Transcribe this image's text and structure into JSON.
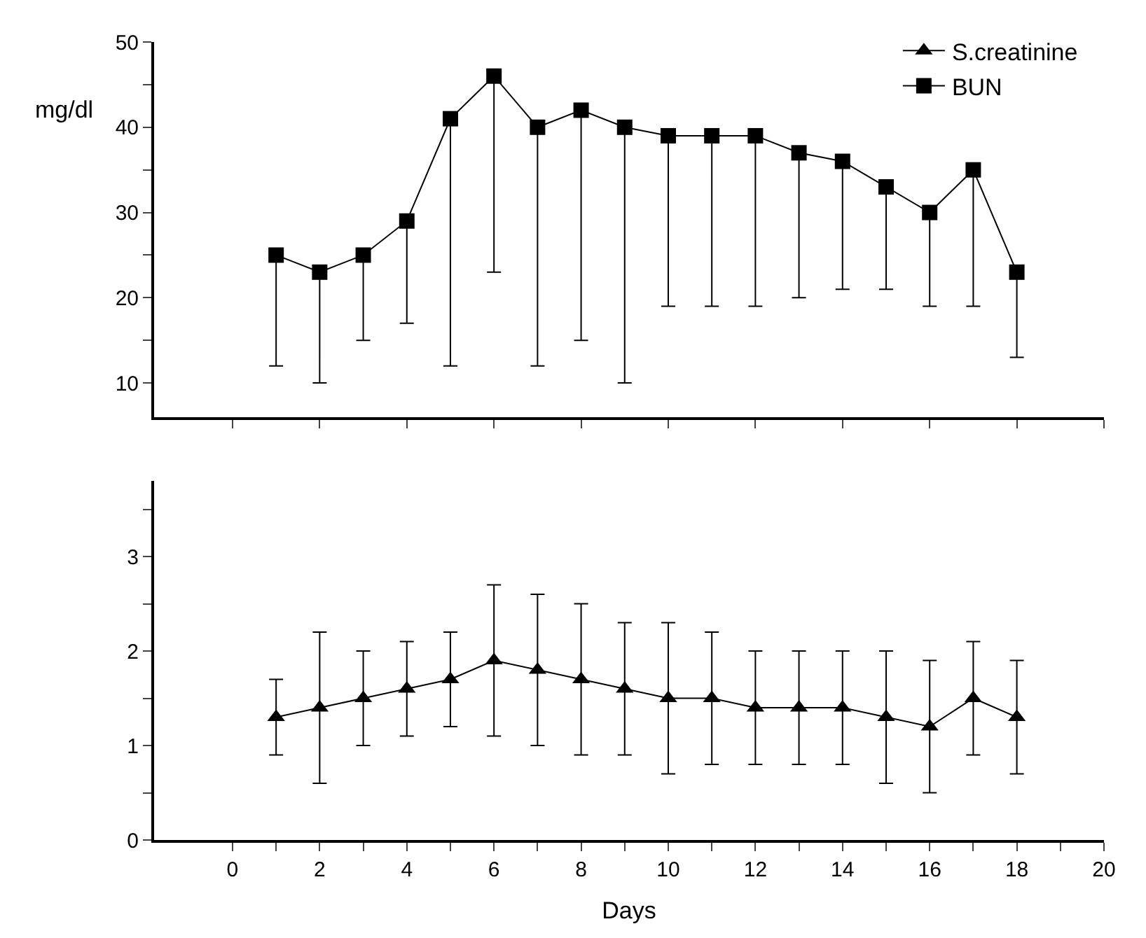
{
  "chart_data": [
    {
      "type": "line",
      "ylabel": "mg/dl",
      "x": [
        1,
        2,
        3,
        4,
        5,
        6,
        7,
        8,
        9,
        10,
        11,
        12,
        13,
        14,
        15,
        16,
        17,
        18
      ],
      "xlim": [
        -1.8,
        20
      ],
      "xticks": [
        0,
        2,
        4,
        6,
        8,
        10,
        12,
        14,
        16,
        18,
        20
      ],
      "ylim": [
        6,
        50
      ],
      "yticks": [
        10,
        {
          "value": 15,
          "label": null
        },
        20,
        {
          "value": 25,
          "label": null
        },
        30,
        {
          "value": 35,
          "label": null
        },
        40,
        {
          "value": 45,
          "label": null
        },
        50
      ],
      "tick_labels": "y",
      "legend": "top right",
      "line_style": "solid",
      "series": [
        {
          "name": "BUN",
          "color": "#000000",
          "marker": "square",
          "values": [
            25,
            23,
            25,
            29,
            41,
            46,
            40,
            42,
            40,
            39,
            39,
            39,
            37,
            36,
            33,
            30,
            35,
            23
          ],
          "errors": [
            [
              12,
              25
            ],
            [
              10,
              23
            ],
            [
              15,
              25
            ],
            [
              17,
              29
            ],
            [
              12,
              41
            ],
            [
              23,
              46
            ],
            [
              12,
              40
            ],
            [
              15,
              42
            ],
            [
              10,
              40
            ],
            [
              19,
              39
            ],
            [
              19,
              39
            ],
            [
              19,
              39
            ],
            [
              20,
              37
            ],
            [
              21,
              36
            ],
            [
              21,
              33
            ],
            [
              19,
              30
            ],
            [
              19,
              35
            ],
            [
              13,
              23
            ]
          ]
        }
      ]
    },
    {
      "type": "line",
      "xlabel": "Days",
      "x": [
        1,
        2,
        3,
        4,
        5,
        6,
        7,
        8,
        9,
        10,
        11,
        12,
        13,
        14,
        15,
        16,
        17,
        18
      ],
      "xlim": [
        -1.8,
        20
      ],
      "xticks": [
        0,
        {
          "value": 1,
          "label": null
        },
        2,
        {
          "value": 3,
          "label": null
        },
        4,
        {
          "value": 5,
          "label": null
        },
        6,
        {
          "value": 7,
          "label": null
        },
        8,
        {
          "value": 9,
          "label": null
        },
        10,
        {
          "value": 11,
          "label": null
        },
        12,
        {
          "value": 13,
          "label": null
        },
        14,
        {
          "value": 15,
          "label": null
        },
        16,
        {
          "value": 17,
          "label": null
        },
        18,
        {
          "value": 19,
          "label": null
        },
        20
      ],
      "ylim": [
        0,
        3.8
      ],
      "yticks": [
        0,
        {
          "value": 0.5,
          "label": null
        },
        1,
        {
          "value": 1.5,
          "label": null
        },
        2,
        {
          "value": 2.5,
          "label": null
        },
        3,
        {
          "value": 3.5,
          "label": null
        }
      ],
      "line_style": "solid",
      "series": [
        {
          "name": "S.creatinine",
          "color": "#000000",
          "marker": "triangle",
          "values": [
            1.3,
            1.4,
            1.5,
            1.6,
            1.7,
            1.9,
            1.8,
            1.7,
            1.6,
            1.5,
            1.5,
            1.4,
            1.4,
            1.4,
            1.3,
            1.2,
            1.5,
            1.3
          ],
          "errors": [
            [
              0.9,
              1.7
            ],
            [
              0.6,
              2.2
            ],
            [
              1.0,
              2.0
            ],
            [
              1.1,
              2.1
            ],
            [
              1.2,
              2.2
            ],
            [
              1.1,
              2.7
            ],
            [
              1.0,
              2.6
            ],
            [
              0.9,
              2.5
            ],
            [
              0.9,
              2.3
            ],
            [
              0.7,
              2.3
            ],
            [
              0.8,
              2.2
            ],
            [
              0.8,
              2.0
            ],
            [
              0.8,
              2.0
            ],
            [
              0.8,
              2.0
            ],
            [
              0.6,
              2.0
            ],
            [
              0.5,
              1.9
            ],
            [
              0.9,
              2.1
            ],
            [
              0.7,
              1.9
            ]
          ]
        }
      ]
    }
  ]
}
